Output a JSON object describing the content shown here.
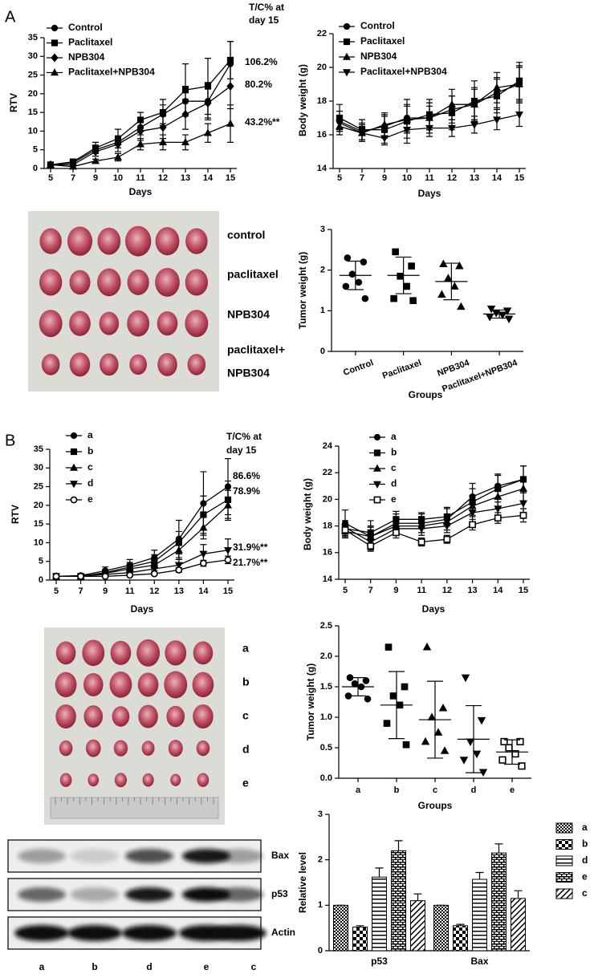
{
  "panel_labels": [
    "A",
    "B"
  ],
  "photo_a_labels": [
    "control",
    "paclitaxel",
    "NPB304",
    "paclitaxel+",
    "NPB304"
  ],
  "photo_b_labels": [
    "a",
    "b",
    "c",
    "d",
    "e"
  ],
  "blot_bands": [
    "Bax",
    "p53",
    "Actin"
  ],
  "blot_lanes": [
    "a",
    "b",
    "d",
    "e",
    "c"
  ],
  "chart_data": [
    {
      "type": "line",
      "x_label": "Days",
      "y_label": "RTV",
      "categories": [
        "5",
        "7",
        "9",
        "10",
        "11",
        "12",
        "13",
        "14",
        "15"
      ],
      "ylim": [
        0,
        35
      ],
      "yticks": [
        0,
        5,
        10,
        15,
        20,
        25,
        30,
        35
      ],
      "legend": "upper left",
      "note": [
        "T/C% at",
        "day 15"
      ],
      "annotations": [
        "106.2%",
        "80.2%",
        "43.2%**"
      ],
      "series": [
        {
          "name": "Control",
          "color": "#000000",
          "marker": "circle",
          "values": [
            1,
            1.5,
            5,
            7,
            11,
            14.5,
            18,
            18,
            28
          ],
          "errors": [
            0.2,
            0.4,
            1,
            1.5,
            2,
            2.5,
            4,
            5,
            6
          ]
        },
        {
          "name": "Paclitaxel",
          "color": "#000000",
          "marker": "square",
          "values": [
            1,
            1.8,
            5.5,
            8,
            13,
            15,
            21,
            22,
            29
          ],
          "errors": [
            0.2,
            0.5,
            1.5,
            2.5,
            2,
            3.5,
            7,
            7.5,
            5
          ]
        },
        {
          "name": "NPB304",
          "color": "#000000",
          "marker": "diamond",
          "values": [
            1,
            1,
            4.5,
            6.5,
            10,
            11,
            14.5,
            17.5,
            22
          ],
          "errors": [
            0.2,
            0.4,
            1.2,
            2,
            2.5,
            3,
            4,
            4,
            6
          ]
        },
        {
          "name": "Paclitaxel+NPB304",
          "color": "#000000",
          "marker": "triangle",
          "values": [
            1,
            0.5,
            2,
            3,
            6.5,
            7,
            7,
            9.5,
            12
          ],
          "errors": [
            0.2,
            0.3,
            0.5,
            1,
            1.5,
            2,
            2,
            2.5,
            5
          ]
        }
      ]
    },
    {
      "type": "line",
      "x_label": "Days",
      "y_label": "Body weight (g)",
      "categories": [
        "5",
        "7",
        "9",
        "10",
        "11",
        "12",
        "13",
        "14",
        "15"
      ],
      "ylim": [
        14,
        22
      ],
      "yticks": [
        14,
        16,
        18,
        20,
        22
      ],
      "legend": "upper left",
      "series": [
        {
          "name": "Control",
          "color": "#000000",
          "marker": "circle",
          "values": [
            16.8,
            16.2,
            16.5,
            17,
            17,
            17.5,
            17.8,
            18.5,
            19
          ],
          "errors": [
            0.6,
            0.5,
            0.7,
            0.8,
            0.9,
            0.8,
            1,
            0.9,
            1.1
          ]
        },
        {
          "name": "Paclitaxel",
          "color": "#000000",
          "marker": "square",
          "values": [
            17,
            16.3,
            16.3,
            16.8,
            17.2,
            17.3,
            18,
            18.3,
            19.2
          ],
          "errors": [
            0.8,
            0.6,
            0.8,
            1.3,
            0.9,
            1,
            1.2,
            1,
            1.1
          ]
        },
        {
          "name": "NPB304",
          "color": "#000000",
          "marker": "triangle",
          "values": [
            16.5,
            16.1,
            16.6,
            16.9,
            17,
            17.8,
            17.8,
            18.8,
            19
          ],
          "errors": [
            0.5,
            0.5,
            0.7,
            0.8,
            0.7,
            0.9,
            0.9,
            0.9,
            1
          ]
        },
        {
          "name": "Paclitaxel+NPB304",
          "color": "#000000",
          "marker": "triangle-down",
          "values": [
            16.7,
            16.1,
            15.8,
            16.3,
            16.4,
            16.4,
            16.6,
            16.9,
            17.2
          ],
          "errors": [
            0.4,
            0.4,
            0.4,
            0.5,
            0.5,
            0.5,
            0.5,
            0.6,
            0.7
          ]
        }
      ]
    },
    {
      "type": "dotplot",
      "x_label": "Groups",
      "y_label": "Tumor weight (g)",
      "categories": [
        "Control",
        "Paclitaxel",
        "NPB304",
        "Paclitaxel+NPB304"
      ],
      "ylim": [
        0,
        3
      ],
      "yticks": [
        0,
        1,
        2,
        3
      ],
      "groups": [
        {
          "marker": "circle",
          "points": [
            2.3,
            2.2,
            1.9,
            1.7,
            1.6,
            1.3
          ],
          "mean": 1.87,
          "sd": 0.35
        },
        {
          "marker": "square",
          "points": [
            2.45,
            2.1,
            1.85,
            1.6,
            1.3,
            1.25
          ],
          "mean": 1.87,
          "sd": 0.45
        },
        {
          "marker": "triangle",
          "points": [
            2.15,
            2.1,
            1.8,
            1.6,
            1.4,
            1.1
          ],
          "mean": 1.72,
          "sd": 0.45
        },
        {
          "marker": "triangle-down",
          "points": [
            1.05,
            1,
            0.95,
            0.9,
            0.85,
            0.8
          ],
          "mean": 0.92,
          "sd": 0.1
        }
      ]
    },
    {
      "type": "line",
      "x_label": "Days",
      "y_label": "RTV",
      "categories": [
        "5",
        "7",
        "9",
        "11",
        "12",
        "13",
        "14",
        "15"
      ],
      "ylim": [
        0,
        35
      ],
      "yticks": [
        0,
        5,
        10,
        15,
        20,
        25,
        30,
        35
      ],
      "legend": "upper left",
      "note": [
        "T/C% at",
        "day 15"
      ],
      "annotations": [
        "86.6%",
        "78.9%",
        "31.9%**",
        "21.7%**"
      ],
      "series": [
        {
          "name": "a",
          "color": "#000000",
          "marker": "circle",
          "values": [
            1,
            1.2,
            2.5,
            4,
            6,
            11,
            20.5,
            25
          ],
          "errors": [
            0.2,
            0.5,
            1,
            1.5,
            2,
            5,
            8.5,
            7.5
          ]
        },
        {
          "name": "b",
          "color": "#000000",
          "marker": "square",
          "values": [
            1,
            1,
            2,
            3.5,
            5,
            10,
            17.5,
            21.5
          ],
          "errors": [
            0.2,
            0.4,
            0.8,
            1.2,
            1.8,
            3,
            5,
            5
          ]
        },
        {
          "name": "c",
          "color": "#000000",
          "marker": "triangle",
          "values": [
            1,
            1,
            1.8,
            3,
            4,
            8,
            14,
            20
          ],
          "errors": [
            0.2,
            0.3,
            0.6,
            1,
            1.5,
            2.5,
            3,
            4
          ]
        },
        {
          "name": "d",
          "color": "#000000",
          "marker": "triangle-down",
          "values": [
            1,
            1,
            1.5,
            2,
            3,
            4,
            7,
            8
          ],
          "errors": [
            0.1,
            0.2,
            0.4,
            0.6,
            1,
            1.5,
            2.5,
            3
          ]
        },
        {
          "name": "e",
          "color": "#000000",
          "marker": "circle-open",
          "values": [
            1,
            1,
            1,
            1.3,
            1.7,
            2.7,
            4.5,
            5.4
          ],
          "errors": [
            0.1,
            0.1,
            0.2,
            0.3,
            0.4,
            0.6,
            0.8,
            1
          ]
        }
      ]
    },
    {
      "type": "line",
      "x_label": "Days",
      "y_label": "Body weight (g)",
      "categories": [
        "5",
        "7",
        "9",
        "11",
        "12",
        "13",
        "14",
        "15"
      ],
      "ylim": [
        14,
        24
      ],
      "yticks": [
        14,
        16,
        18,
        20,
        22,
        24
      ],
      "legend": "upper left",
      "series": [
        {
          "name": "a",
          "color": "#000000",
          "marker": "circle",
          "values": [
            18.2,
            17.2,
            18.2,
            18.2,
            18.5,
            20.2,
            21,
            21.5
          ],
          "errors": [
            1,
            0.8,
            0.7,
            0.7,
            0.8,
            1,
            0.9,
            1
          ]
        },
        {
          "name": "b",
          "color": "#000000",
          "marker": "square",
          "values": [
            17.8,
            17.5,
            18.5,
            18.5,
            18.7,
            19.8,
            20.8,
            21.5
          ],
          "errors": [
            0.6,
            0.9,
            0.6,
            0.5,
            0.7,
            1,
            1,
            1
          ]
        },
        {
          "name": "c",
          "color": "#000000",
          "marker": "triangle",
          "values": [
            17.6,
            17.2,
            18,
            18,
            18.3,
            19.5,
            20.2,
            20.8
          ],
          "errors": [
            0.5,
            0.7,
            0.6,
            0.5,
            0.6,
            0.8,
            0.9,
            0.9
          ]
        },
        {
          "name": "d",
          "color": "#000000",
          "marker": "triangle-down",
          "values": [
            17.9,
            16.8,
            17.8,
            17.8,
            18,
            19,
            19.3,
            19.7
          ],
          "errors": [
            0.5,
            0.6,
            0.5,
            0.5,
            0.5,
            0.7,
            0.8,
            0.9
          ]
        },
        {
          "name": "e",
          "color": "#000000",
          "marker": "square-open",
          "values": [
            17.7,
            16.5,
            17.5,
            16.8,
            17,
            18.1,
            18.6,
            18.8
          ],
          "errors": [
            0.4,
            0.4,
            0.4,
            0.3,
            0.3,
            0.4,
            0.4,
            0.5
          ]
        }
      ]
    },
    {
      "type": "dotplot",
      "x_label": "Groups",
      "y_label": "Tumor weight (g)",
      "categories": [
        "a",
        "b",
        "c",
        "d",
        "e"
      ],
      "ylim": [
        0,
        2.5
      ],
      "yticks": [
        {
          "value": 0,
          "label": "0.0"
        },
        0.5,
        {
          "value": 1,
          "label": "1.0"
        },
        1.5,
        {
          "value": 2,
          "label": "2.0"
        },
        2.5
      ],
      "groups": [
        {
          "marker": "circle",
          "points": [
            1.65,
            1.6,
            1.55,
            1.5,
            1.35,
            1.3
          ],
          "mean": 1.5,
          "sd": 0.15
        },
        {
          "marker": "square",
          "points": [
            2.15,
            1.5,
            1.35,
            1.2,
            0.9,
            0.55
          ],
          "mean": 1.2,
          "sd": 0.55
        },
        {
          "marker": "triangle",
          "points": [
            2.15,
            1.15,
            1,
            0.75,
            0.6,
            0.45
          ],
          "mean": 0.96,
          "sd": 0.63
        },
        {
          "marker": "triangle-down",
          "points": [
            1.65,
            0.95,
            0.6,
            0.4,
            0.3,
            0.1
          ],
          "mean": 0.64,
          "sd": 0.55
        },
        {
          "marker": "square-open",
          "points": [
            0.6,
            0.6,
            0.5,
            0.4,
            0.3,
            0.2
          ],
          "mean": 0.43,
          "sd": 0.2
        }
      ]
    },
    {
      "type": "bar",
      "y_label": "Relative level",
      "categories": [
        "p53",
        "Bax"
      ],
      "ylim": [
        0,
        3
      ],
      "yticks": [
        0,
        1,
        2,
        3
      ],
      "legend": "right",
      "series": [
        {
          "name": "a",
          "pattern": "checker",
          "values": [
            1,
            1
          ],
          "errors": [
            0,
            0
          ]
        },
        {
          "name": "b",
          "pattern": "checker-large",
          "values": [
            0.52,
            0.55
          ],
          "errors": [
            0.03,
            0.03
          ]
        },
        {
          "name": "d",
          "pattern": "horizontal",
          "values": [
            1.62,
            1.57
          ],
          "errors": [
            0.2,
            0.15
          ]
        },
        {
          "name": "e",
          "pattern": "grid",
          "values": [
            2.2,
            2.15
          ],
          "errors": [
            0.22,
            0.2
          ]
        },
        {
          "name": "c",
          "pattern": "diagonal",
          "values": [
            1.1,
            1.15
          ],
          "errors": [
            0.15,
            0.17
          ]
        }
      ]
    }
  ]
}
